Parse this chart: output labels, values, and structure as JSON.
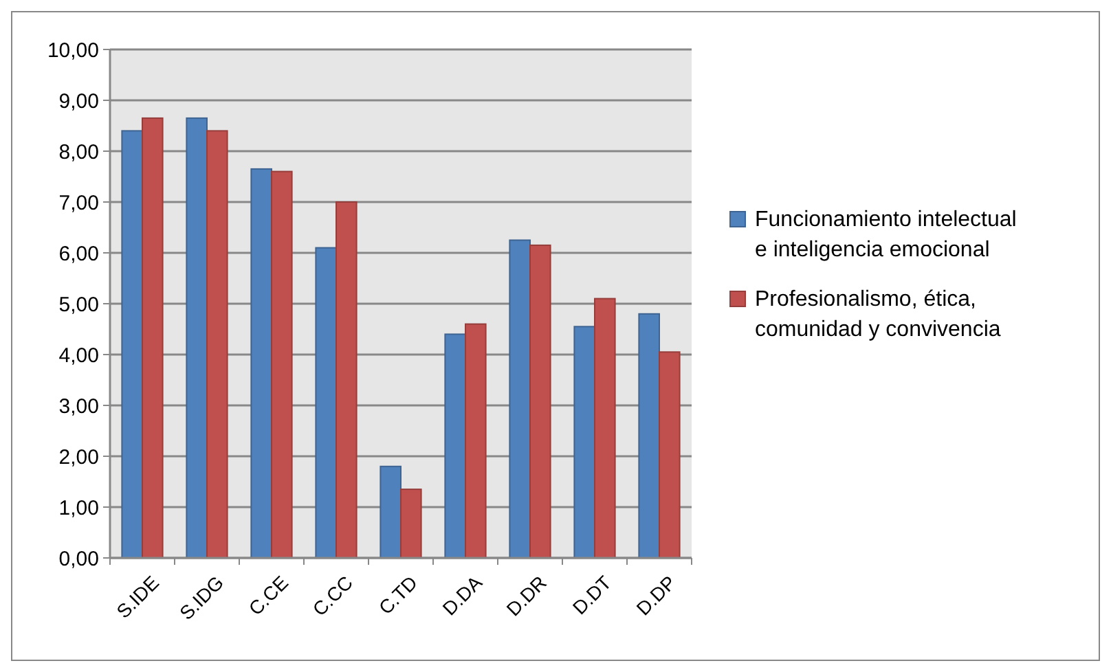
{
  "chart_data": {
    "type": "bar",
    "categories": [
      "S.IDE",
      "S.IDG",
      "C.CE",
      "C.CC",
      "C.TD",
      "D.DA",
      "D.DR",
      "D.DT",
      "D.DP"
    ],
    "series": [
      {
        "name": "Funcionamiento intelectual e inteligencia emocional",
        "color": "#4f81bd",
        "values": [
          8.4,
          8.65,
          7.65,
          6.1,
          1.8,
          4.4,
          6.25,
          4.55,
          4.8
        ]
      },
      {
        "name": "Profesionalismo, ética, comunidad y convivencia",
        "color": "#c0504d",
        "values": [
          8.65,
          8.4,
          7.6,
          7.0,
          1.35,
          4.6,
          6.15,
          5.1,
          4.05
        ]
      }
    ],
    "ylim": [
      0,
      10
    ],
    "yticks": [
      {
        "value": 0,
        "label": "0,00"
      },
      {
        "value": 1,
        "label": "1,00"
      },
      {
        "value": 2,
        "label": "2,00"
      },
      {
        "value": 3,
        "label": "3,00"
      },
      {
        "value": 4,
        "label": "4,00"
      },
      {
        "value": 5,
        "label": "5,00"
      },
      {
        "value": 6,
        "label": "6,00"
      },
      {
        "value": 7,
        "label": "7,00"
      },
      {
        "value": 8,
        "label": "8,00"
      },
      {
        "value": 9,
        "label": "9,00"
      },
      {
        "value": 10,
        "label": "10,00"
      }
    ],
    "grid": "y",
    "legend": "right"
  }
}
